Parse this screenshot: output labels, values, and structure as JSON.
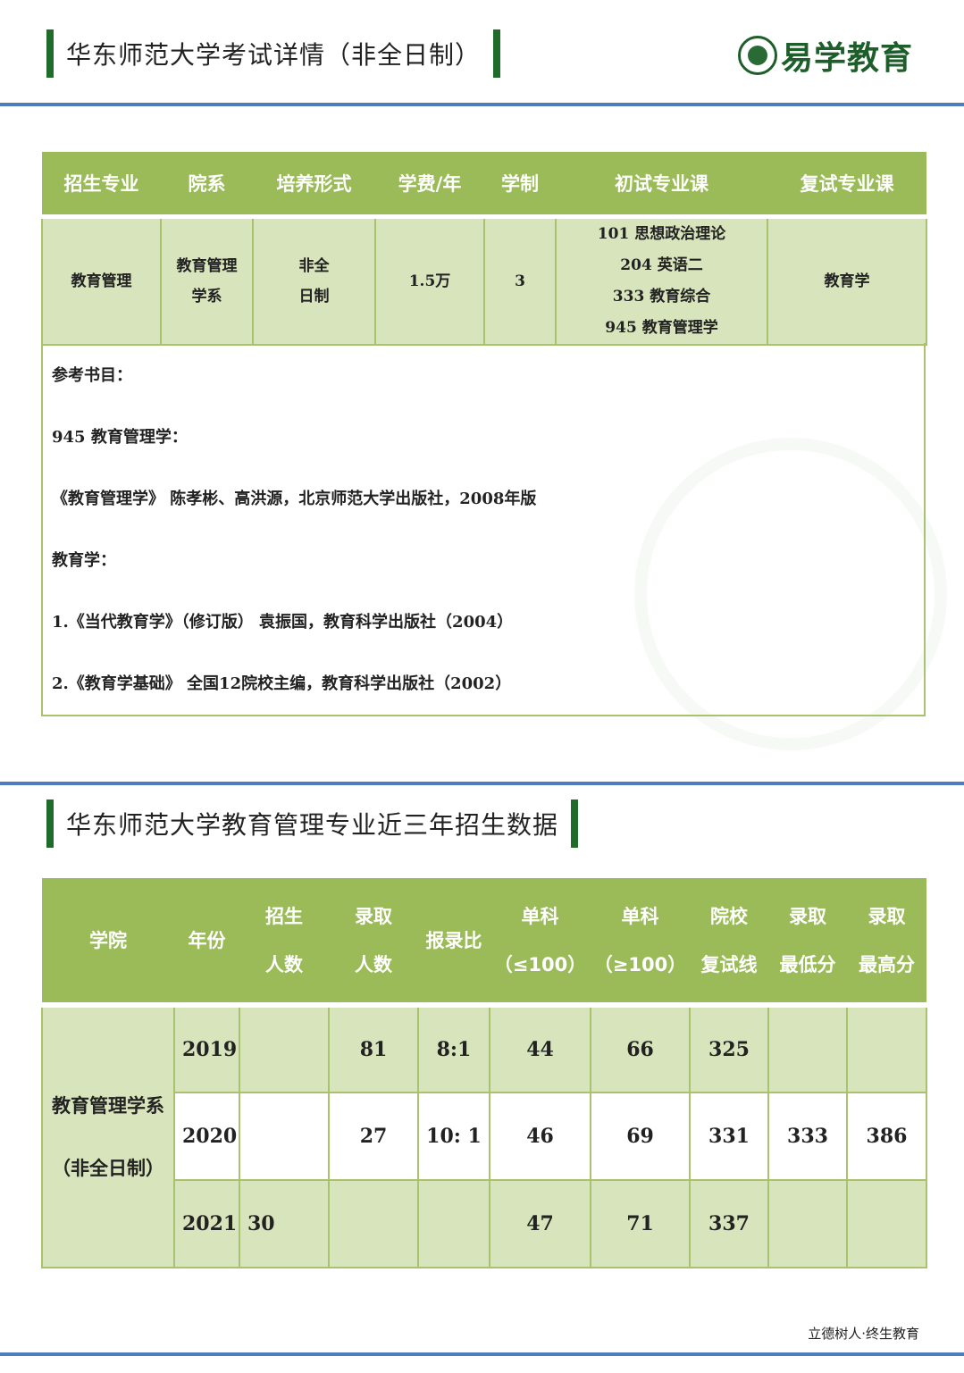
{
  "section1": {
    "title": "华东师范大学考试详情（非全日制）"
  },
  "logo": {
    "text": "易学教育"
  },
  "table1": {
    "headers": [
      "招生专业",
      "院系",
      "培养形式",
      "学费/年",
      "学制",
      "初试专业课",
      "复试专业课"
    ],
    "row": [
      "教育管理",
      "教育管理\n学系",
      "非全\n日制",
      "1.5万",
      "3",
      "101 思想政治理论\n204 英语二\n333 教育综合\n945 教育管理学",
      "教育学"
    ]
  },
  "references": [
    "参考书目：",
    "945 教育管理学：",
    "《教育管理学》 陈孝彬、高洪源，北京师范大学出版社，2008年版",
    "教育学：",
    "1.《当代教育学》（修订版） 袁振国，教育科学出版社（2004）",
    "2.《教育学基础》 全国12院校主编，教育科学出版社（2002）"
  ],
  "section2": {
    "title": "华东师范大学教育管理专业近三年招生数据"
  },
  "table2": {
    "headers": [
      "学院",
      "年份",
      "招生\n人数",
      "录取\n人数",
      "报录比",
      "单科\n（≤100）",
      "单科\n（≥100）",
      "院校\n复试线",
      "录取\n最低分",
      "录取\n最高分"
    ],
    "college": "教育管理学系\n（非全日制）",
    "rows": [
      [
        "2019",
        "",
        "81",
        "8:1",
        "44",
        "66",
        "325",
        "",
        ""
      ],
      [
        "2020",
        "",
        "27",
        "10: 1",
        "46",
        "69",
        "331",
        "333",
        "386"
      ],
      [
        "2021",
        "30",
        "",
        "",
        "47",
        "71",
        "337",
        "",
        ""
      ]
    ]
  },
  "footer": "立德树人·终生教育",
  "colors": {
    "header_green": "#9bbb59",
    "light_green": "#d7e4bc",
    "title_bar": "#1e6b2a",
    "rule_blue": "#4f7cbf"
  }
}
